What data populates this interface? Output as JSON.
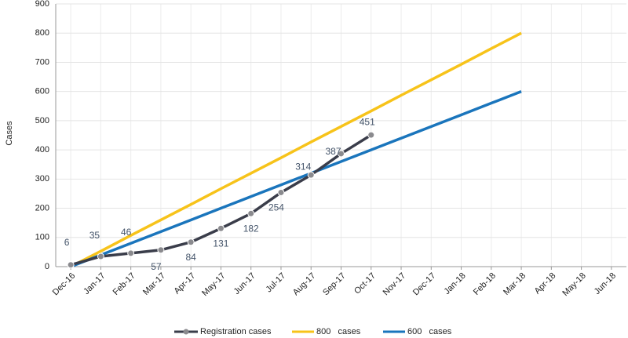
{
  "chart_data": {
    "type": "line",
    "y_label": "Cases",
    "categories": [
      "Dec-16",
      "Jan-17",
      "Feb-17",
      "Mar-17",
      "Apr-17",
      "May-17",
      "Jun-17",
      "Jul-17",
      "Aug-17",
      "Sep-17",
      "Oct-17",
      "Nov-17",
      "Dec-17",
      "Jan-18",
      "Feb-18",
      "Mar-18",
      "Apr-18",
      "May-18",
      "Jun-18"
    ],
    "series": [
      {
        "name": "Registration cases",
        "color": "#3a3d4a",
        "marker_color": "#8a8a8e",
        "values": [
          6,
          35,
          46,
          57,
          84,
          131,
          182,
          254,
          314,
          387,
          451,
          null,
          null,
          null,
          null,
          null,
          null,
          null,
          null
        ],
        "data_labels": true
      },
      {
        "name": "800   cases",
        "color": "#f7c31a",
        "values": [
          0,
          53,
          107,
          160,
          213,
          267,
          320,
          373,
          427,
          480,
          533,
          587,
          640,
          693,
          747,
          800,
          null,
          null,
          null
        ]
      },
      {
        "name": "600   cases",
        "color": "#1a75bc",
        "values": [
          0,
          40,
          80,
          120,
          160,
          200,
          240,
          280,
          320,
          360,
          400,
          440,
          480,
          520,
          560,
          600,
          null,
          null,
          null
        ]
      }
    ],
    "ylim": [
      0,
      900
    ],
    "yticks": [
      0,
      100,
      200,
      300,
      400,
      500,
      600,
      700,
      800,
      900
    ],
    "grid": true,
    "legend": "bottom"
  }
}
